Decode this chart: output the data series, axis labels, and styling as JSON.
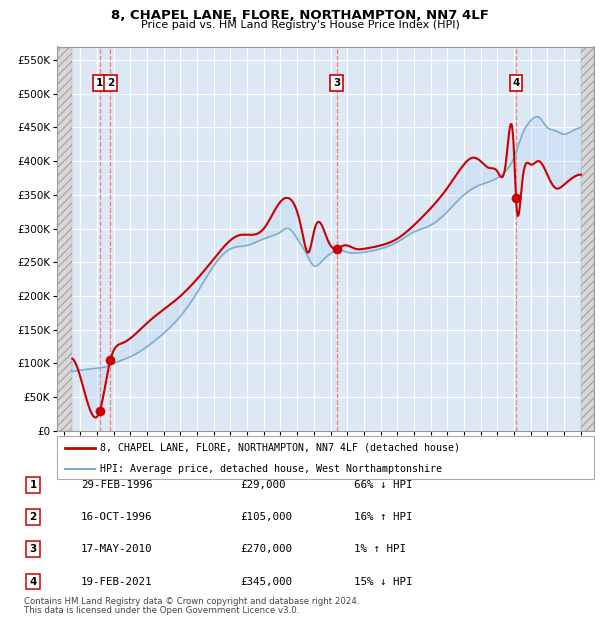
{
  "title": "8, CHAPEL LANE, FLORE, NORTHAMPTON, NN7 4LF",
  "subtitle": "Price paid vs. HM Land Registry's House Price Index (HPI)",
  "ylim": [
    0,
    570000
  ],
  "yticks": [
    0,
    50000,
    100000,
    150000,
    200000,
    250000,
    300000,
    350000,
    400000,
    450000,
    500000,
    550000
  ],
  "ytick_labels": [
    "£0",
    "£50K",
    "£100K",
    "£150K",
    "£200K",
    "£250K",
    "£300K",
    "£350K",
    "£400K",
    "£450K",
    "£500K",
    "£550K"
  ],
  "xlim_start": 1993.6,
  "xlim_end": 2025.8,
  "plot_bg_color": "#dce9f5",
  "red_line_color": "#cc0000",
  "blue_line_color": "#7aadcc",
  "dashed_line_color": "#ff6666",
  "transactions": [
    {
      "num": 1,
      "date_dec": 1996.16,
      "price": 29000,
      "label": "29-FEB-1996",
      "amount": "£29,000",
      "pct": "66% ↓ HPI"
    },
    {
      "num": 2,
      "date_dec": 1996.8,
      "price": 105000,
      "label": "16-OCT-1996",
      "amount": "£105,000",
      "pct": "16% ↑ HPI"
    },
    {
      "num": 3,
      "date_dec": 2010.37,
      "price": 270000,
      "label": "17-MAY-2010",
      "amount": "£270,000",
      "pct": "1% ↑ HPI"
    },
    {
      "num": 4,
      "date_dec": 2021.12,
      "price": 345000,
      "label": "19-FEB-2021",
      "amount": "£345,000",
      "pct": "15% ↓ HPI"
    }
  ],
  "legend_line1": "8, CHAPEL LANE, FLORE, NORTHAMPTON, NN7 4LF (detached house)",
  "legend_line2": "HPI: Average price, detached house, West Northamptonshire",
  "footer1": "Contains HM Land Registry data © Crown copyright and database right 2024.",
  "footer2": "This data is licensed under the Open Government Licence v3.0.",
  "hpi_years": [
    1994.0,
    1995.0,
    1996.0,
    1996.5,
    1997.0,
    1998.0,
    1999.0,
    2000.0,
    2001.0,
    2002.0,
    2003.0,
    2004.0,
    2005.0,
    2006.0,
    2007.0,
    2007.5,
    2008.0,
    2008.5,
    2009.0,
    2009.5,
    2010.0,
    2010.5,
    2011.0,
    2012.0,
    2013.0,
    2014.0,
    2015.0,
    2016.0,
    2017.0,
    2018.0,
    2019.0,
    2020.0,
    2020.5,
    2021.0,
    2021.5,
    2022.0,
    2022.5,
    2023.0,
    2023.5,
    2024.0,
    2024.5,
    2025.0,
    2025.5
  ],
  "hpi_prices": [
    85000,
    90000,
    93000,
    95000,
    100000,
    110000,
    125000,
    145000,
    170000,
    205000,
    245000,
    270000,
    275000,
    285000,
    295000,
    300000,
    285000,
    265000,
    245000,
    252000,
    263000,
    268000,
    265000,
    265000,
    270000,
    280000,
    295000,
    305000,
    325000,
    350000,
    365000,
    375000,
    385000,
    405000,
    440000,
    460000,
    465000,
    450000,
    445000,
    440000,
    445000,
    450000,
    455000
  ],
  "red_years": [
    1994.0,
    1995.0,
    1996.16,
    1996.8,
    1997.5,
    1999.0,
    2001.0,
    2003.0,
    2004.5,
    2006.0,
    2007.0,
    2007.5,
    2008.0,
    2008.3,
    2008.7,
    2009.0,
    2009.3,
    2009.8,
    2010.0,
    2010.37,
    2010.8,
    2011.5,
    2012.0,
    2013.0,
    2014.0,
    2015.0,
    2016.0,
    2017.0,
    2018.0,
    2018.5,
    2019.0,
    2019.5,
    2020.0,
    2020.5,
    2021.0,
    2021.12,
    2021.5,
    2022.0,
    2022.5,
    2023.0,
    2023.5,
    2024.0,
    2024.5,
    2025.0,
    2025.5
  ],
  "red_prices": [
    75000,
    80000,
    29000,
    105000,
    130000,
    160000,
    200000,
    255000,
    290000,
    300000,
    340000,
    345000,
    325000,
    295000,
    265000,
    295000,
    310000,
    285000,
    275000,
    270000,
    275000,
    270000,
    270000,
    275000,
    285000,
    305000,
    330000,
    360000,
    395000,
    405000,
    400000,
    390000,
    385000,
    395000,
    415000,
    345000,
    370000,
    395000,
    400000,
    380000,
    360000,
    365000,
    375000,
    380000,
    370000
  ]
}
